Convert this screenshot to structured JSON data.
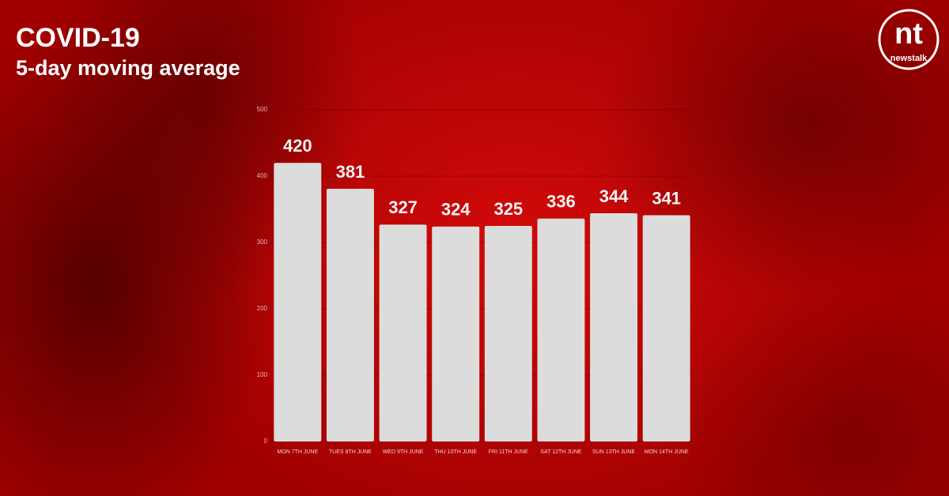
{
  "chart_data": {
    "type": "bar",
    "title": "COVID-19",
    "subtitle": "5-day moving average",
    "categories": [
      "MON 7TH JUNE",
      "TUES 8TH JUNE",
      "WED 9TH JUNE",
      "THU 10TH JUNE",
      "FRI 11TH JUNE",
      "SAT 12TH JUNE",
      "SUN 13TH JUNE",
      "MON 14TH JUNE"
    ],
    "values": [
      420,
      381,
      327,
      324,
      325,
      336,
      344,
      341
    ],
    "color": "#dcdcdc",
    "ylim": [
      0,
      500
    ],
    "yticks": [
      0,
      100,
      200,
      300,
      400,
      500
    ],
    "grid": true
  },
  "logo": {
    "mark": "nt",
    "name": "newstalk"
  }
}
